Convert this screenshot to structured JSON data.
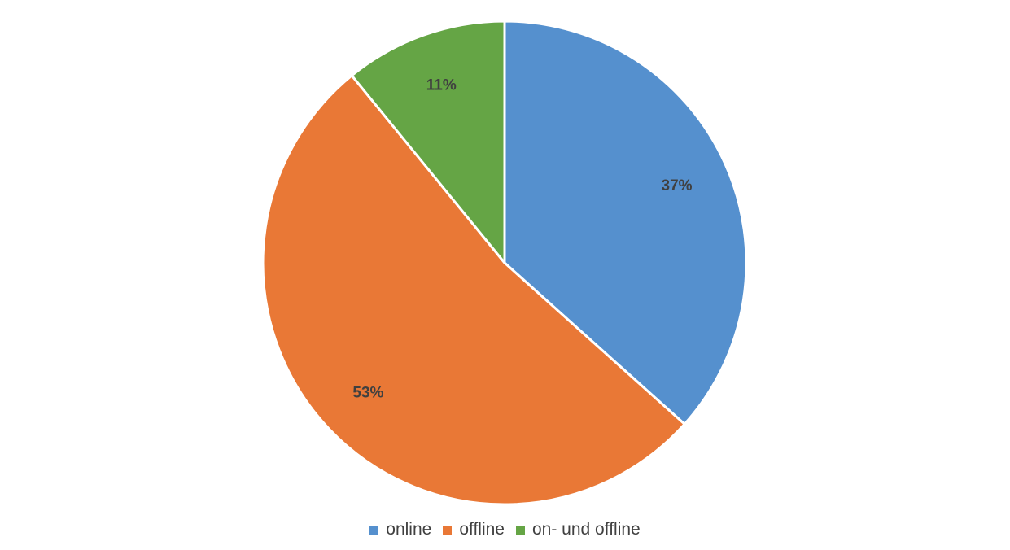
{
  "chart_data": {
    "type": "pie",
    "categories": [
      "online",
      "offline",
      "on- und offline"
    ],
    "values": [
      37,
      53,
      11
    ],
    "data_labels": [
      "37%",
      "53%",
      "11%"
    ],
    "colors": [
      "#5590CE",
      "#E97836",
      "#65A545"
    ],
    "legend_position": "bottom",
    "start_angle": "12 o'clock",
    "direction": "clockwise"
  }
}
